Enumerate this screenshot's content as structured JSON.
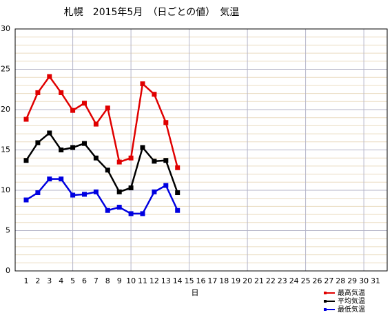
{
  "chart_data": {
    "type": "line",
    "title": "札幌　2015年5月　（日ごとの値）　気温",
    "x_label": "日",
    "categories": [
      1,
      2,
      3,
      4,
      5,
      6,
      7,
      8,
      9,
      10,
      11,
      12,
      13,
      14,
      15,
      16,
      17,
      18,
      19,
      20,
      21,
      22,
      23,
      24,
      25,
      26,
      27,
      28,
      29,
      30,
      31
    ],
    "series": [
      {
        "name": "最高気温",
        "color": "#e00000",
        "values": [
          18.8,
          22.1,
          24.1,
          22.1,
          19.9,
          20.8,
          18.2,
          20.2,
          13.5,
          14.0,
          23.2,
          21.9,
          18.4,
          12.8,
          null,
          null,
          null,
          null,
          null,
          null,
          null,
          null,
          null,
          null,
          null,
          null,
          null,
          null,
          null,
          null,
          null
        ]
      },
      {
        "name": "平均気温",
        "color": "#000000",
        "values": [
          13.7,
          15.9,
          17.1,
          15.0,
          15.3,
          15.8,
          14.0,
          12.5,
          9.8,
          10.3,
          15.3,
          13.6,
          13.7,
          9.7,
          null,
          null,
          null,
          null,
          null,
          null,
          null,
          null,
          null,
          null,
          null,
          null,
          null,
          null,
          null,
          null,
          null
        ]
      },
      {
        "name": "最低気温",
        "color": "#0000e0",
        "values": [
          8.8,
          9.7,
          11.4,
          11.4,
          9.4,
          9.5,
          9.8,
          7.5,
          7.9,
          7.1,
          7.1,
          9.8,
          10.6,
          7.5,
          null,
          null,
          null,
          null,
          null,
          null,
          null,
          null,
          null,
          null,
          null,
          null,
          null,
          null,
          null,
          null,
          null
        ]
      }
    ],
    "ylim": [
      0,
      30
    ],
    "yticks": [
      0,
      5,
      10,
      15,
      20,
      25,
      30
    ],
    "grid": true,
    "minor_grid": true,
    "legend": "bottom-right"
  }
}
